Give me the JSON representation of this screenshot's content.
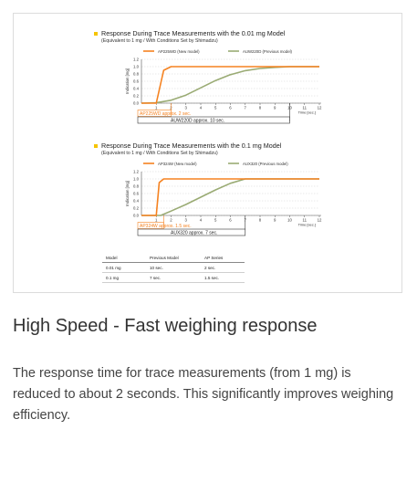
{
  "colors": {
    "new_model": "#f58220",
    "previous_model": "#9aab74",
    "bullet": "#f5c400"
  },
  "heading": "High Speed - Fast weighing response",
  "description": "The response time for trace measurements (from 1 mg) is reduced to about 2 seconds. This significantly improves weighing efficiency.",
  "chart_data": [
    {
      "type": "line",
      "title": "Response During Trace Measurements with the 0.01 mg Model",
      "subtitle": "(Equivalent to 1 mg / With Conditions Set by Shimadzu)",
      "ylabel": "Indication [mg]",
      "xlabel": "Time [sec.]",
      "x_ticks": [
        1,
        2,
        3,
        4,
        5,
        6,
        7,
        8,
        9,
        10,
        11,
        12
      ],
      "x_tick_labels": [
        "1",
        "2",
        "3",
        "4",
        "5",
        "6",
        "7",
        "8",
        "9",
        "10",
        "11",
        "12"
      ],
      "y_ticks": [
        "0.0",
        "0.2",
        "0.4",
        "0.6",
        "0.8",
        "1.0",
        "1.2"
      ],
      "xlim": [
        0,
        12
      ],
      "ylim": [
        0,
        1.2
      ],
      "series": [
        {
          "name": "AP225WD (New model)",
          "color": "#f58220",
          "x": [
            0,
            1.0,
            1.5,
            2.0,
            12
          ],
          "y": [
            0,
            0,
            0.9,
            1.0,
            1.0
          ]
        },
        {
          "name": "AUW220D (Previous model)",
          "color": "#9aab74",
          "x": [
            0,
            1,
            2,
            3,
            4,
            5,
            6,
            7,
            8,
            9,
            10,
            12
          ],
          "y": [
            0,
            0.01,
            0.08,
            0.22,
            0.42,
            0.62,
            0.78,
            0.89,
            0.95,
            0.98,
            1.0,
            1.0
          ]
        }
      ],
      "annotations": [
        {
          "text": "AP225WD approx. 2 sec.",
          "x": 2,
          "color": "#f58220"
        },
        {
          "text": "AUW220D approx. 10 sec.",
          "x": 10,
          "color": "#222222"
        }
      ]
    },
    {
      "type": "line",
      "title": "Response During Trace Measurements with the 0.1 mg Model",
      "subtitle": "(Equivalent to 1 mg / With Conditions Set by Shimadzu)",
      "ylabel": "Indication [mg]",
      "xlabel": "Time [sec.]",
      "x_ticks": [
        1,
        2,
        3,
        4,
        5,
        6,
        7,
        8,
        9,
        10,
        11,
        12
      ],
      "x_tick_labels": [
        "1",
        "2",
        "3",
        "4",
        "5",
        "6",
        "7",
        "8",
        "9",
        "10",
        "11",
        "12"
      ],
      "y_ticks": [
        "0.0",
        "0.2",
        "0.4",
        "0.6",
        "0.8",
        "1.0",
        "1.2"
      ],
      "xlim": [
        0,
        12
      ],
      "ylim": [
        0,
        1.2
      ],
      "series": [
        {
          "name": "AP324W (New model)",
          "color": "#f58220",
          "x": [
            0,
            1.0,
            1.2,
            1.5,
            12
          ],
          "y": [
            0,
            0,
            0.9,
            1.0,
            1.0
          ]
        },
        {
          "name": "AUX320 (Previous model)",
          "color": "#9aab74",
          "x": [
            0,
            1.3,
            2,
            3,
            4,
            5,
            6,
            7,
            12
          ],
          "y": [
            0,
            0,
            0.12,
            0.3,
            0.5,
            0.7,
            0.88,
            1.0,
            1.0
          ]
        }
      ],
      "annotations": [
        {
          "text": "AP324W approx. 1.5 sec.",
          "x": 1.5,
          "color": "#f58220"
        },
        {
          "text": "AUX320 approx. 7 sec.",
          "x": 7,
          "color": "#222222"
        }
      ]
    },
    {
      "type": "table",
      "columns": [
        "Model",
        "Previous Model",
        "AP Series"
      ],
      "rows": [
        [
          "0.01 mg",
          "10 sec.",
          "2 sec."
        ],
        [
          "0.1 mg",
          "7 sec.",
          "1.5 sec."
        ]
      ]
    }
  ]
}
